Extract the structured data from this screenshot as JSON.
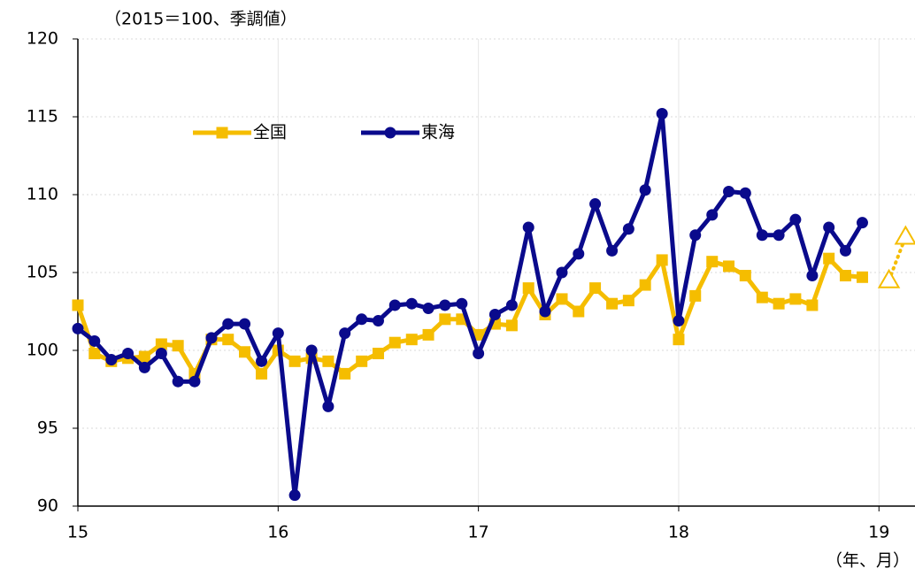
{
  "chart_data": {
    "type": "line",
    "y_unit_label": "（2015＝100、季調値）",
    "x_unit_label": "（年、月）",
    "x": [
      15,
      15.083,
      15.167,
      15.25,
      15.333,
      15.417,
      15.5,
      15.583,
      15.667,
      15.75,
      15.833,
      15.917,
      16,
      16.083,
      16.167,
      16.25,
      16.333,
      16.417,
      16.5,
      16.583,
      16.667,
      16.75,
      16.833,
      16.917,
      17,
      17.083,
      17.167,
      17.25,
      17.333,
      17.417,
      17.5,
      17.583,
      17.667,
      17.75,
      17.833,
      17.917,
      18,
      18.083,
      18.167,
      18.25,
      18.333,
      18.417,
      18.5,
      18.583,
      18.667,
      18.75,
      18.833,
      18.917
    ],
    "series": [
      {
        "name": "全国",
        "color": "#f5bd00",
        "marker": "square",
        "values": [
          102.9,
          99.8,
          99.3,
          99.5,
          99.6,
          100.4,
          100.3,
          98.5,
          100.7,
          100.7,
          99.9,
          98.5,
          100.0,
          99.3,
          99.5,
          99.3,
          98.5,
          99.3,
          99.8,
          100.5,
          100.7,
          101.0,
          102.0,
          102.0,
          101.0,
          101.7,
          101.6,
          104.0,
          102.3,
          103.3,
          102.5,
          104.0,
          103.0,
          103.2,
          104.2,
          105.8,
          100.7,
          103.5,
          105.7,
          105.4,
          104.8,
          103.4,
          103.0,
          103.3,
          102.9,
          105.9,
          104.8,
          104.7
        ]
      },
      {
        "name": "東海",
        "color": "#0a0a8c",
        "marker": "circle",
        "values": [
          101.4,
          100.6,
          99.4,
          99.8,
          98.9,
          99.8,
          98.0,
          98.0,
          100.8,
          101.7,
          101.7,
          99.3,
          101.1,
          90.7,
          100.0,
          96.4,
          101.1,
          102.0,
          101.9,
          102.9,
          103.0,
          102.7,
          102.9,
          103.0,
          99.8,
          102.3,
          102.9,
          107.9,
          102.5,
          105.0,
          106.2,
          109.4,
          106.4,
          107.8,
          110.3,
          115.2,
          101.9,
          107.4,
          108.7,
          110.2,
          110.1,
          107.4,
          107.4,
          108.4,
          104.8,
          107.9,
          106.4,
          108.2
        ]
      }
    ],
    "forecast": {
      "color": "#f5bd00",
      "x": [
        19.05,
        19.133
      ],
      "values": [
        104.5,
        107.3
      ]
    },
    "xlim": [
      15,
      19.18
    ],
    "xticks": [
      15,
      16,
      17,
      18,
      19
    ],
    "ylim": [
      90,
      120
    ],
    "yticks": [
      90,
      95,
      100,
      105,
      110,
      115,
      120
    ],
    "grid": true
  }
}
